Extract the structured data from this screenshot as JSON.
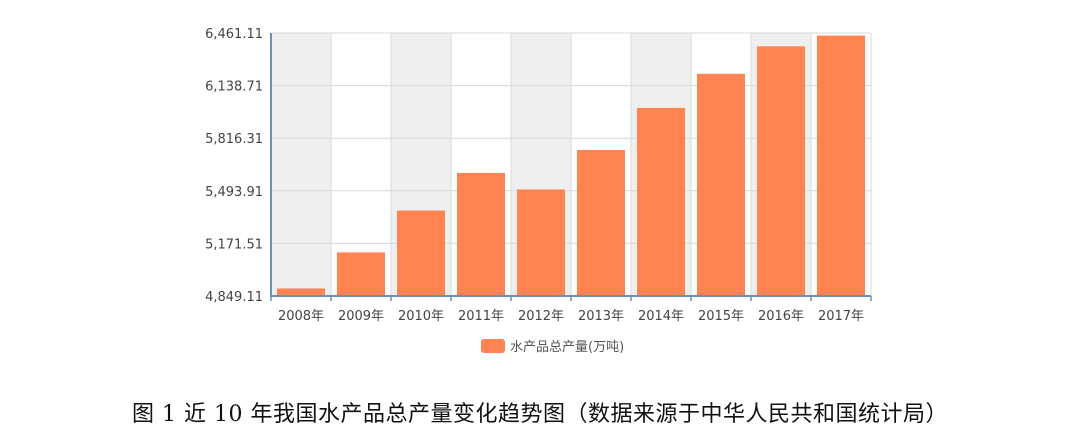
{
  "caption": "图 1 近 10 年我国水产品总产量变化趋势图（数据来源于中华人民共和国统计局）",
  "colors": {
    "bar": "#FF8451",
    "grid": "#D8D8D8",
    "plot_bg_alt": "#EFEFEF",
    "axis": "#6E8FB5"
  },
  "chart_data": {
    "type": "bar",
    "categories": [
      "2008年",
      "2009年",
      "2010年",
      "2011年",
      "2012年",
      "2013年",
      "2014年",
      "2015年",
      "2016年",
      "2017年"
    ],
    "series": [
      {
        "name": "水产品总产量(万吨)",
        "values": [
          4895.6,
          5116.4,
          5373.0,
          5603.2,
          5502.1,
          5744.2,
          6001.9,
          6211.0,
          6379.5,
          6445.3
        ]
      }
    ],
    "y_ticks": [
      "4,849.11",
      "5,171.51",
      "5,493.91",
      "5,816.31",
      "6,138.71",
      "6,461.11"
    ],
    "ylim": [
      4849.11,
      6461.11
    ],
    "grid": true,
    "legend_position": "bottom-center"
  }
}
